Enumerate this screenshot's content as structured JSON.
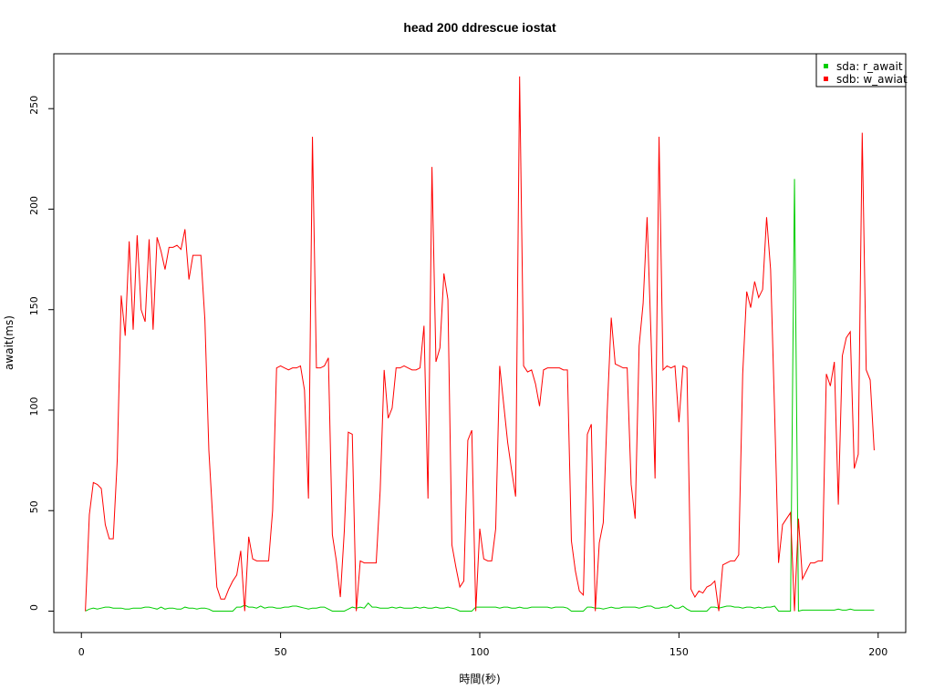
{
  "chart_data": {
    "type": "line",
    "title": "head 200 ddrescue iostat",
    "xlabel": "時間(秒)",
    "ylabel": "await(ms)",
    "x": [
      1,
      2,
      3,
      4,
      5,
      6,
      7,
      8,
      9,
      10,
      11,
      12,
      13,
      14,
      15,
      16,
      17,
      18,
      19,
      20,
      21,
      22,
      23,
      24,
      25,
      26,
      27,
      28,
      29,
      30,
      31,
      32,
      33,
      34,
      35,
      36,
      37,
      38,
      39,
      40,
      41,
      42,
      43,
      44,
      45,
      46,
      47,
      48,
      49,
      50,
      51,
      52,
      53,
      54,
      55,
      56,
      57,
      58,
      59,
      60,
      61,
      62,
      63,
      64,
      65,
      66,
      67,
      68,
      69,
      70,
      71,
      72,
      73,
      74,
      75,
      76,
      77,
      78,
      79,
      80,
      81,
      82,
      83,
      84,
      85,
      86,
      87,
      88,
      89,
      90,
      91,
      92,
      93,
      94,
      95,
      96,
      97,
      98,
      99,
      100,
      101,
      102,
      103,
      104,
      105,
      106,
      107,
      108,
      109,
      110,
      111,
      112,
      113,
      114,
      115,
      116,
      117,
      118,
      119,
      120,
      121,
      122,
      123,
      124,
      125,
      126,
      127,
      128,
      129,
      130,
      131,
      132,
      133,
      134,
      135,
      136,
      137,
      138,
      139,
      140,
      141,
      142,
      143,
      144,
      145,
      146,
      147,
      148,
      149,
      150,
      151,
      152,
      153,
      154,
      155,
      156,
      157,
      158,
      159,
      160,
      161,
      162,
      163,
      164,
      165,
      166,
      167,
      168,
      169,
      170,
      171,
      172,
      173,
      174,
      175,
      176,
      177,
      178,
      179,
      180,
      181,
      182,
      183,
      184,
      185,
      186,
      187,
      188,
      189,
      190,
      191,
      192,
      193,
      194,
      195,
      196,
      197,
      198,
      199
    ],
    "series": [
      {
        "name": "sda: r_await",
        "color": "#00cd00",
        "values": [
          0,
          1,
          1.5,
          1,
          1.5,
          2,
          2,
          1.5,
          1.5,
          1.5,
          1,
          1,
          1.5,
          1.5,
          1.5,
          2,
          2,
          1.5,
          1,
          2,
          1,
          1.5,
          1.5,
          1,
          1,
          2,
          1.5,
          1.5,
          1,
          1.5,
          1.5,
          1,
          0,
          0,
          0,
          0,
          0,
          0,
          2,
          2,
          3,
          2,
          2,
          1.5,
          2.5,
          1.5,
          2,
          2,
          1.5,
          1.5,
          2,
          2,
          2.5,
          2.5,
          2,
          1.5,
          1,
          1.5,
          1.5,
          2,
          2,
          1,
          0,
          0,
          0,
          0,
          1,
          2,
          1.5,
          2,
          1.5,
          4,
          2,
          2,
          1.5,
          1.5,
          1.5,
          2,
          1.5,
          2,
          1.5,
          1.5,
          1.5,
          2,
          1.5,
          2,
          1.5,
          1.5,
          2,
          1.5,
          1.5,
          2,
          1.5,
          1,
          0,
          0,
          0,
          0,
          2,
          2,
          2,
          2,
          2,
          2,
          1.5,
          2,
          2,
          1.5,
          1.5,
          2,
          1.5,
          1.5,
          2,
          2,
          2,
          2,
          2,
          1.5,
          2,
          2,
          2,
          1.5,
          0,
          0,
          0,
          0,
          2,
          2,
          1.5,
          1.5,
          1,
          1.5,
          2,
          1.5,
          1.5,
          2,
          2,
          2,
          2,
          1.5,
          2,
          2.5,
          2.5,
          1.5,
          1.5,
          2,
          2,
          3,
          1.5,
          1.5,
          2.5,
          1,
          0,
          0,
          0,
          0,
          0,
          2,
          2,
          1.5,
          2,
          2.5,
          2.5,
          2,
          2,
          1.5,
          2,
          2,
          1.5,
          2,
          1.5,
          2,
          2,
          2.5,
          0,
          0,
          0,
          0,
          215,
          0,
          0.5,
          0.5,
          0.5,
          0.5,
          0.5,
          0.5,
          0.5,
          0.5,
          0.5,
          1,
          0.5,
          0.5,
          1,
          0.5,
          0.5,
          0.5,
          0.5,
          0.5,
          0.5
        ]
      },
      {
        "name": "sdb: w_awiat",
        "color": "#ff0000",
        "values": [
          0,
          48,
          64,
          63,
          61,
          43,
          36,
          36,
          75,
          157,
          137,
          184,
          140,
          187,
          150,
          144,
          185,
          140,
          186,
          179,
          170,
          181,
          181,
          182,
          180,
          190,
          165,
          177,
          177,
          177,
          145,
          80,
          45,
          12,
          6,
          6,
          11,
          15,
          18,
          30,
          0,
          37,
          26,
          25,
          25,
          25,
          25,
          50,
          121,
          122,
          121,
          120,
          121,
          121,
          122,
          110,
          56,
          236,
          121,
          121,
          122,
          126,
          38,
          25,
          7,
          40,
          89,
          88,
          0,
          25,
          24,
          24,
          24,
          24,
          60,
          120,
          96,
          101,
          121,
          121,
          122,
          121,
          120,
          120,
          121,
          142,
          56,
          221,
          124,
          131,
          168,
          155,
          33,
          22,
          12,
          15,
          85,
          90,
          0,
          41,
          26,
          25,
          25,
          41,
          122,
          103,
          84,
          70,
          57,
          266,
          122,
          119,
          120,
          113,
          102,
          120,
          121,
          121,
          121,
          121,
          120,
          120,
          35,
          20,
          10,
          8,
          88,
          93,
          0,
          34,
          44,
          100,
          146,
          123,
          122,
          121,
          121,
          63,
          46,
          132,
          153,
          196,
          136,
          66,
          236,
          120,
          122,
          121,
          122,
          94,
          122,
          121,
          11,
          7,
          10,
          9,
          12,
          13,
          15,
          0,
          23,
          24,
          25,
          25,
          28,
          118,
          159,
          151,
          164,
          156,
          160,
          196,
          170,
          100,
          24,
          43,
          46,
          49,
          0,
          46,
          16,
          20,
          24,
          24,
          25,
          25,
          118,
          112,
          124,
          53,
          127,
          136,
          139,
          71,
          78,
          238,
          120,
          115,
          80
        ]
      }
    ],
    "xlim": [
      -6.92,
      206.92
    ],
    "ylim": [
      -10.66,
      277.3
    ],
    "xticks": [
      0,
      50,
      100,
      150,
      200
    ],
    "yticks": [
      0,
      50,
      100,
      150,
      200,
      250
    ],
    "legend": "top-right"
  }
}
